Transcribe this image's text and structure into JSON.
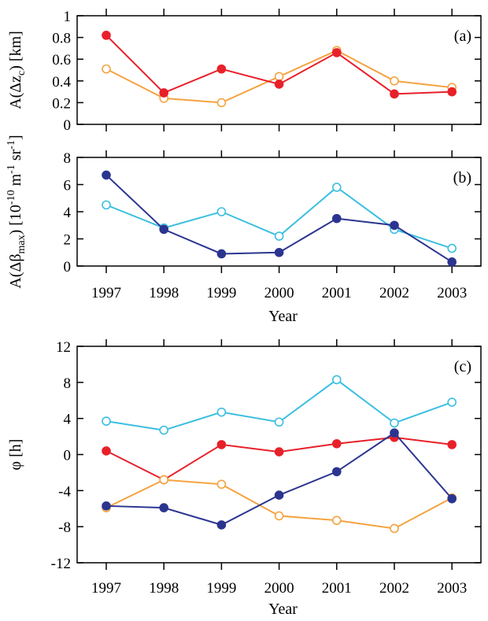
{
  "colors": {
    "red": "#e8202a",
    "orange": "#f4a340",
    "navy": "#2b3590",
    "cyan": "#3bbfe0"
  },
  "chart_data": [
    {
      "type": "line",
      "panel_label": "(a)",
      "ylabel": "A(Δz_c) [km]",
      "ylim": [
        0,
        1
      ],
      "yticks": [
        0,
        0.2,
        0.4,
        0.6,
        0.8,
        1
      ],
      "ytick_labels": [
        "0",
        "0.2",
        "0.4",
        "0.6",
        "0.8",
        "1"
      ],
      "x": [
        1997,
        1998,
        1999,
        2000,
        2001,
        2002,
        2003
      ],
      "series": [
        {
          "color": "orange",
          "marker": "open",
          "values": [
            0.51,
            0.24,
            0.2,
            0.44,
            0.68,
            0.4,
            0.34
          ]
        },
        {
          "color": "red",
          "marker": "filled",
          "values": [
            0.82,
            0.29,
            0.51,
            0.37,
            0.66,
            0.28,
            0.3
          ]
        }
      ]
    },
    {
      "type": "line",
      "panel_label": "(b)",
      "ylabel": "A(Δβ_max) [10^-10 m^-1 sr^-1]",
      "ylim": [
        0,
        8
      ],
      "yticks": [
        0,
        2,
        4,
        6,
        8
      ],
      "ytick_labels": [
        "0",
        "2",
        "4",
        "6",
        "8"
      ],
      "x": [
        1997,
        1998,
        1999,
        2000,
        2001,
        2002,
        2003
      ],
      "xtick_labels": [
        "1997",
        "1998",
        "1999",
        "2000",
        "2001",
        "2002",
        "2003"
      ],
      "xlabel": "Year",
      "series": [
        {
          "color": "cyan",
          "marker": "open",
          "values": [
            4.5,
            2.8,
            4.0,
            2.2,
            5.8,
            2.7,
            1.3
          ]
        },
        {
          "color": "navy",
          "marker": "filled",
          "values": [
            6.7,
            2.7,
            0.9,
            1.0,
            3.5,
            3.0,
            0.3
          ]
        }
      ]
    },
    {
      "type": "line",
      "panel_label": "(c)",
      "ylabel": "φ [h]",
      "ylim": [
        -12,
        12
      ],
      "yticks": [
        -12,
        -8,
        -4,
        0,
        4,
        8,
        12
      ],
      "ytick_labels": [
        "-12",
        "-8",
        "-4",
        "0",
        "4",
        "8",
        "12"
      ],
      "x": [
        1997,
        1998,
        1999,
        2000,
        2001,
        2002,
        2003
      ],
      "xtick_labels": [
        "1997",
        "1998",
        "1999",
        "2000",
        "2001",
        "2002",
        "2003"
      ],
      "xlabel": "Year",
      "series": [
        {
          "color": "cyan",
          "marker": "open",
          "values": [
            3.7,
            2.7,
            4.7,
            3.6,
            8.3,
            3.5,
            5.8
          ]
        },
        {
          "color": "red",
          "marker": "filled",
          "values": [
            0.4,
            -2.8,
            1.1,
            0.3,
            1.2,
            1.9,
            1.1
          ]
        },
        {
          "color": "orange",
          "marker": "open",
          "values": [
            -5.9,
            -2.8,
            -3.3,
            -6.8,
            -7.3,
            -8.2,
            -4.8
          ]
        },
        {
          "color": "navy",
          "marker": "filled",
          "values": [
            -5.7,
            -5.9,
            -7.8,
            -4.5,
            -1.9,
            2.4,
            -4.9
          ]
        }
      ]
    }
  ]
}
